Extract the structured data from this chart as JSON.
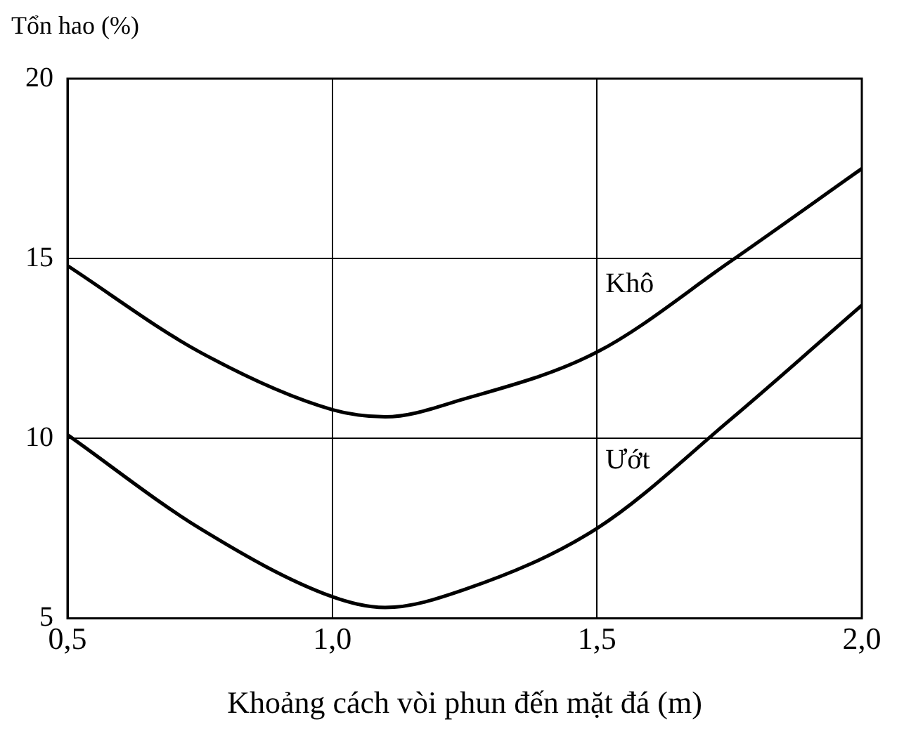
{
  "chart_data": {
    "type": "line",
    "ylabel": "Tổn hao (%)",
    "xlabel": "Khoảng cách vòi phun đến mặt đá (m)",
    "x": [
      0.5,
      0.75,
      1.0,
      1.1,
      1.25,
      1.5,
      1.75,
      2.0
    ],
    "series": [
      {
        "name": "Khô",
        "color": "#000000",
        "values": [
          14.8,
          12.4,
          10.8,
          10.6,
          11.1,
          12.4,
          14.9,
          17.5
        ]
      },
      {
        "name": "Ướt",
        "color": "#000000",
        "values": [
          10.1,
          7.5,
          5.6,
          5.3,
          5.8,
          7.5,
          10.5,
          13.7
        ]
      }
    ],
    "xlim": [
      0.5,
      2.0
    ],
    "xticks": [
      {
        "value": 0.5,
        "label": "0,5"
      },
      {
        "value": 1.0,
        "label": "1,0"
      },
      {
        "value": 1.5,
        "label": "1,5"
      },
      {
        "value": 2.0,
        "label": "2,0"
      }
    ],
    "ylim": [
      5,
      20
    ],
    "yticks": [
      5,
      10,
      15,
      20
    ],
    "grid": true,
    "legend": false,
    "marker": "none",
    "line_style": "solid"
  }
}
